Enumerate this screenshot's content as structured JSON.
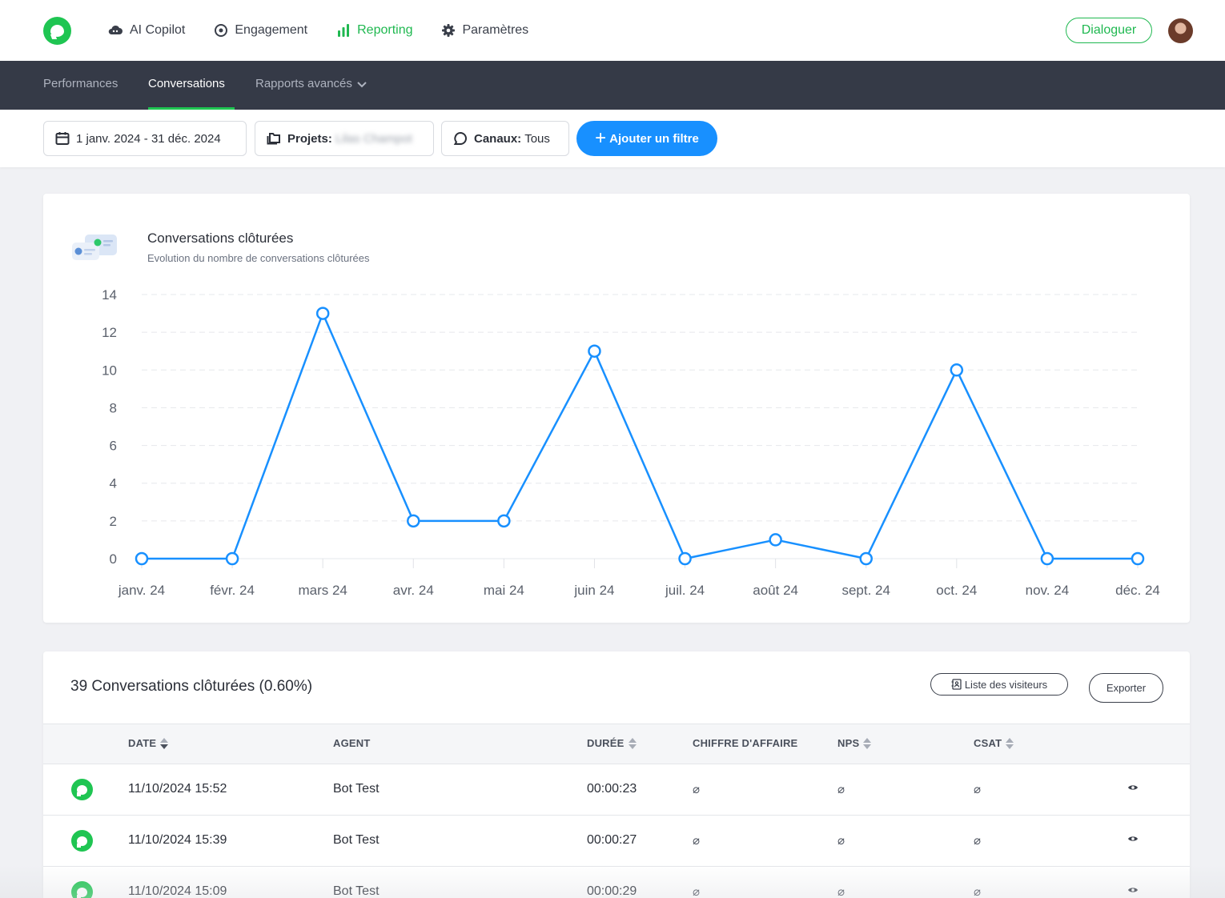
{
  "topnav": {
    "items": [
      {
        "label": "AI Copilot",
        "icon": "cloud-icon"
      },
      {
        "label": "Engagement",
        "icon": "target-icon"
      },
      {
        "label": "Reporting",
        "icon": "bar-chart-icon"
      },
      {
        "label": "Paramètres",
        "icon": "gear-icon"
      }
    ],
    "active": "Reporting",
    "cta_label": "Dialoguer"
  },
  "subnav": {
    "items": [
      "Performances",
      "Conversations",
      "Rapports avancés"
    ],
    "active": "Conversations"
  },
  "filters": {
    "date_range": "1 janv. 2024 - 31 déc. 2024",
    "projects_label": "Projets:",
    "projects_value": "Lilas Champot",
    "channels_label": "Canaux:",
    "channels_value": "Tous",
    "add_filter_label": "Ajouter un filtre"
  },
  "chart_card": {
    "title": "Conversations clôturées",
    "subtitle": "Evolution du nombre de conversations clôturées"
  },
  "chart_data": {
    "type": "line",
    "title": "Conversations clôturées",
    "categories": [
      "janv. 24",
      "févr. 24",
      "mars 24",
      "avr. 24",
      "mai 24",
      "juin 24",
      "juil. 24",
      "août 24",
      "sept. 24",
      "oct. 24",
      "nov. 24",
      "déc. 24"
    ],
    "series": [
      {
        "name": "Conversations clôturées",
        "values": [
          0,
          0,
          13,
          2,
          2,
          11,
          0,
          1,
          0,
          10,
          0,
          0
        ]
      }
    ],
    "ylim": [
      0,
      14
    ],
    "yticks": [
      0,
      2,
      4,
      6,
      8,
      10,
      12,
      14
    ],
    "grid": true,
    "color": "#1890ff"
  },
  "table": {
    "title": "39 Conversations clôturées (0.60%)",
    "visitors_label": "Liste des visiteurs",
    "export_label": "Exporter",
    "columns": [
      "DATE",
      "AGENT",
      "DURÉE",
      "CHIFFRE D'AFFAIRE",
      "NPS",
      "CSAT"
    ],
    "rows": [
      {
        "date": "11/10/2024 15:52",
        "agent": "Bot Test",
        "duration": "00:00:23",
        "revenue": "⌀",
        "nps": "⌀",
        "csat": "⌀"
      },
      {
        "date": "11/10/2024 15:39",
        "agent": "Bot Test",
        "duration": "00:00:27",
        "revenue": "⌀",
        "nps": "⌀",
        "csat": "⌀"
      },
      {
        "date": "11/10/2024 15:09",
        "agent": "Bot Test",
        "duration": "00:00:29",
        "revenue": "⌀",
        "nps": "⌀",
        "csat": "⌀"
      }
    ]
  },
  "colors": {
    "brand_green": "#1fc552",
    "accent_blue": "#1890ff",
    "subnav_bg": "#353a47"
  }
}
